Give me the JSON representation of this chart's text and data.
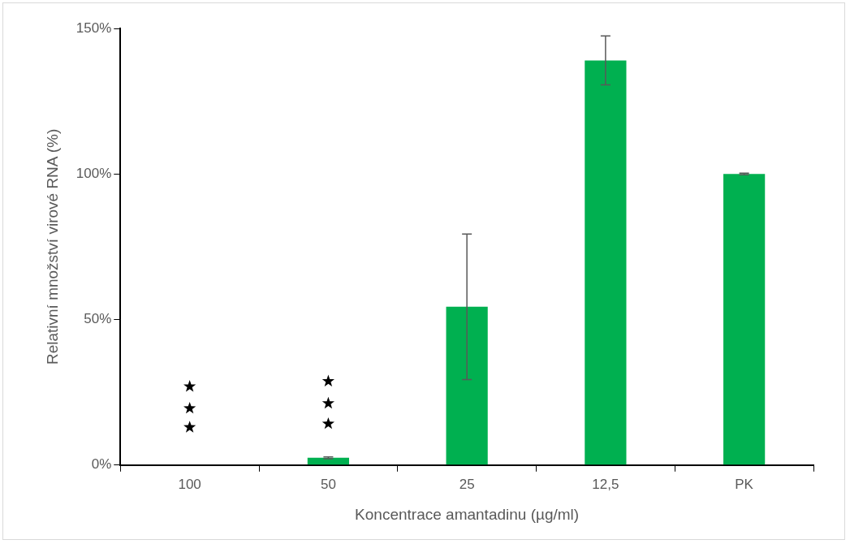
{
  "chart_data": {
    "type": "bar",
    "xlabel": "Koncentrace amantadinu (µg/ml)",
    "ylabel": "Relativní množství virové RNA (%)",
    "categories": [
      "100",
      "50",
      "25",
      "12,5",
      "PK"
    ],
    "series": [
      {
        "color": "#00b050",
        "values": [
          0,
          2.5,
          54.4,
          139,
          100
        ],
        "errors": [
          null,
          0.3,
          25,
          8.4,
          0.3
        ]
      },
      {
        "type": "scatter",
        "color": "#000000",
        "marker": "star",
        "x": [
          "100",
          "100",
          "100",
          "50",
          "50",
          "50"
        ],
        "values": [
          13,
          19.5,
          27,
          14.2,
          21.2,
          28.8
        ]
      }
    ],
    "ylim": [
      0,
      150
    ],
    "yticks": [
      {
        "value": 0,
        "label": "0%"
      },
      {
        "value": 50,
        "label": "50%"
      },
      {
        "value": 100,
        "label": "100%"
      },
      {
        "value": 150,
        "label": "150%"
      }
    ],
    "grid": false,
    "legend": false
  }
}
